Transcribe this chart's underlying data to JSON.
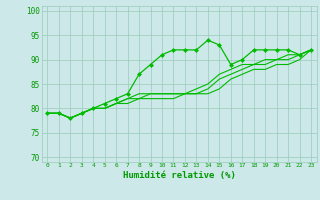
{
  "title": "",
  "xlabel": "Humidité relative (%)",
  "ylabel": "",
  "bg_color": "#cce8e8",
  "line_color": "#00bb00",
  "grid_color": "#99ccbb",
  "text_color": "#009900",
  "xlim": [
    -0.5,
    23.5
  ],
  "ylim": [
    69,
    101
  ],
  "yticks": [
    70,
    75,
    80,
    85,
    90,
    95,
    100
  ],
  "xticks": [
    0,
    1,
    2,
    3,
    4,
    5,
    6,
    7,
    8,
    9,
    10,
    11,
    12,
    13,
    14,
    15,
    16,
    17,
    18,
    19,
    20,
    21,
    22,
    23
  ],
  "series": [
    [
      79,
      79,
      78,
      79,
      80,
      81,
      82,
      83,
      87,
      89,
      91,
      92,
      92,
      92,
      94,
      93,
      89,
      90,
      92,
      92,
      92,
      92,
      91,
      92
    ],
    [
      79,
      79,
      78,
      79,
      80,
      80,
      81,
      82,
      83,
      83,
      83,
      83,
      83,
      84,
      85,
      87,
      88,
      89,
      89,
      90,
      90,
      91,
      91,
      92
    ],
    [
      79,
      79,
      78,
      79,
      80,
      80,
      81,
      82,
      82,
      83,
      83,
      83,
      83,
      83,
      84,
      86,
      87,
      88,
      89,
      89,
      90,
      90,
      91,
      92
    ],
    [
      79,
      79,
      78,
      79,
      80,
      80,
      81,
      81,
      82,
      82,
      82,
      82,
      83,
      83,
      83,
      84,
      86,
      87,
      88,
      88,
      89,
      89,
      90,
      92
    ]
  ]
}
